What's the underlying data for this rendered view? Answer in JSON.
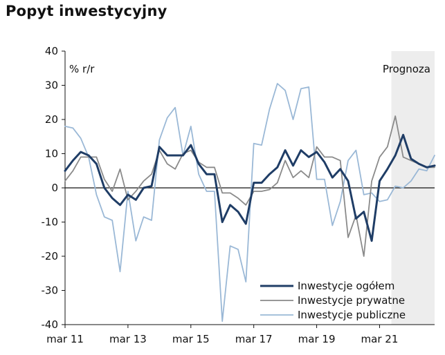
{
  "title": "Popyt inwestycyjny",
  "chart_data": {
    "type": "line",
    "title": "Popyt inwestycyjny",
    "unit_label": "% r/r",
    "forecast_label": "Prognoza",
    "ylim": [
      -40,
      40
    ],
    "y_ticks": [
      "40",
      "30",
      "20",
      "10",
      "0",
      "-10",
      "-20",
      "-30",
      "-40"
    ],
    "x_ticks": [
      "mar 11",
      "mar 13",
      "mar 15",
      "mar 17",
      "mar 19",
      "mar 21"
    ],
    "x_start": "2011Q1",
    "x_end": "2022Q4",
    "forecast_from": "2021Q3",
    "legend_position": "bottom-right",
    "x": [
      "2011Q1",
      "2011Q2",
      "2011Q3",
      "2011Q4",
      "2012Q1",
      "2012Q2",
      "2012Q3",
      "2012Q4",
      "2013Q1",
      "2013Q2",
      "2013Q3",
      "2013Q4",
      "2014Q1",
      "2014Q2",
      "2014Q3",
      "2014Q4",
      "2015Q1",
      "2015Q2",
      "2015Q3",
      "2015Q4",
      "2016Q1",
      "2016Q2",
      "2016Q3",
      "2016Q4",
      "2017Q1",
      "2017Q2",
      "2017Q3",
      "2017Q4",
      "2018Q1",
      "2018Q2",
      "2018Q3",
      "2018Q4",
      "2019Q1",
      "2019Q2",
      "2019Q3",
      "2019Q4",
      "2020Q1",
      "2020Q2",
      "2020Q3",
      "2020Q4",
      "2021Q1",
      "2021Q2",
      "2021Q3",
      "2021Q4",
      "2022Q1",
      "2022Q2",
      "2022Q3",
      "2022Q4"
    ],
    "series": [
      {
        "name": "Inwestycje ogółem",
        "color": "#1f3d66",
        "width": 3,
        "values": [
          5,
          8,
          10.5,
          9.5,
          7,
          0,
          -3,
          -5,
          -2,
          -3.5,
          0,
          0.5,
          12,
          9.5,
          9.5,
          9.5,
          12.5,
          7,
          4,
          4,
          -10,
          -5,
          -7,
          -10.5,
          1.5,
          1.5,
          4,
          6,
          11,
          6.5,
          11,
          9,
          10.5,
          7.5,
          3,
          5.5,
          2,
          -9,
          -7,
          -15.5,
          2,
          5.5,
          9.5,
          15.5,
          8.5,
          7,
          6,
          6.5
        ]
      },
      {
        "name": "Inwestycje prywatne",
        "color": "#8a8a8a",
        "width": 1.8,
        "values": [
          2,
          5,
          9,
          9,
          9,
          2.5,
          -1,
          5.5,
          -3.5,
          -1,
          2,
          4,
          11,
          7,
          5.5,
          10,
          11,
          7.5,
          6,
          6,
          -1.5,
          -1.5,
          -3,
          -5,
          -1,
          -1,
          -0.5,
          1.5,
          8,
          3,
          5,
          3,
          12,
          9,
          9,
          8,
          -14.5,
          -8,
          -20,
          2,
          9,
          12,
          21,
          9,
          8,
          7,
          6,
          6
        ]
      },
      {
        "name": "Inwestycje publiczne",
        "color": "#9ab8d6",
        "width": 1.8,
        "values": [
          18,
          17.5,
          14.5,
          9,
          -2,
          -8.5,
          -9.5,
          -24.5,
          -1,
          -15.5,
          -8.5,
          -9.5,
          14,
          20.5,
          23.5,
          9.5,
          18,
          4,
          -1,
          -1,
          -39,
          -17,
          -18,
          -27.5,
          13,
          12.5,
          23,
          30.5,
          28.5,
          20,
          29,
          29.5,
          2.5,
          2.5,
          -11,
          -4,
          8,
          11,
          -2,
          -1.5,
          -4,
          -3.5,
          0.5,
          0,
          2,
          5.5,
          5,
          9.5
        ]
      }
    ]
  }
}
